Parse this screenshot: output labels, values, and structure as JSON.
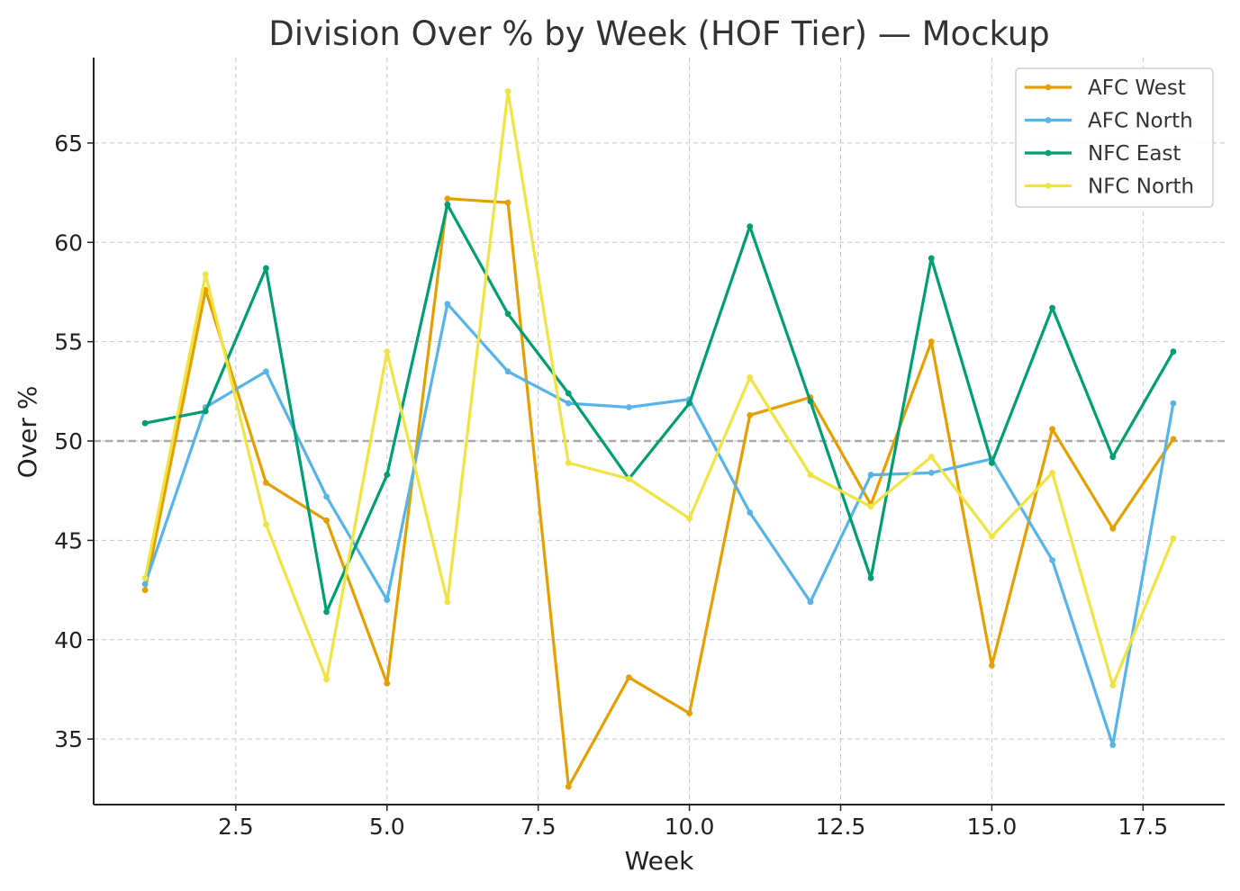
{
  "chart_data": {
    "type": "line",
    "title": "Division Over % by Week (HOF Tier) — Mockup",
    "xlabel": "Week",
    "ylabel": "Over %",
    "xlim": [
      0.15,
      18.85
    ],
    "ylim": [
      31.7,
      69.3
    ],
    "xticks": [
      2.5,
      5.0,
      7.5,
      10.0,
      12.5,
      15.0,
      17.5
    ],
    "xtick_labels": [
      "2.5",
      "5.0",
      "7.5",
      "10.0",
      "12.5",
      "15.0",
      "17.5"
    ],
    "yticks": [
      35,
      40,
      45,
      50,
      55,
      60,
      65
    ],
    "ytick_labels": [
      "35",
      "40",
      "45",
      "50",
      "55",
      "60",
      "65"
    ],
    "reference_line": 50,
    "grid": true,
    "legend_position": "top-right",
    "x": [
      1,
      2,
      3,
      4,
      5,
      6,
      7,
      8,
      9,
      10,
      11,
      12,
      13,
      14,
      15,
      16,
      17,
      18
    ],
    "series": [
      {
        "name": "AFC West",
        "color": "#E69F00",
        "values": [
          42.5,
          57.6,
          47.9,
          46.0,
          37.8,
          62.2,
          62.0,
          32.6,
          38.1,
          36.3,
          51.3,
          52.2,
          46.8,
          55.0,
          38.7,
          50.6,
          45.6,
          50.1
        ]
      },
      {
        "name": "AFC North",
        "color": "#56B4E9",
        "values": [
          42.8,
          51.7,
          53.5,
          47.2,
          42.0,
          56.9,
          53.5,
          51.9,
          51.7,
          52.1,
          46.4,
          41.9,
          48.3,
          48.4,
          49.1,
          44.0,
          34.7,
          51.9
        ]
      },
      {
        "name": "NFC East",
        "color": "#009E73",
        "values": [
          50.9,
          51.5,
          58.7,
          41.4,
          48.3,
          61.9,
          56.4,
          52.4,
          48.1,
          51.9,
          60.8,
          52.0,
          43.1,
          59.2,
          48.9,
          56.7,
          49.2,
          54.5
        ]
      },
      {
        "name": "NFC North",
        "color": "#F0E442",
        "values": [
          43.1,
          58.4,
          45.8,
          38.0,
          54.5,
          41.9,
          67.6,
          48.9,
          48.1,
          46.1,
          53.2,
          48.3,
          46.7,
          49.2,
          45.2,
          48.4,
          37.7,
          45.1
        ]
      }
    ]
  }
}
